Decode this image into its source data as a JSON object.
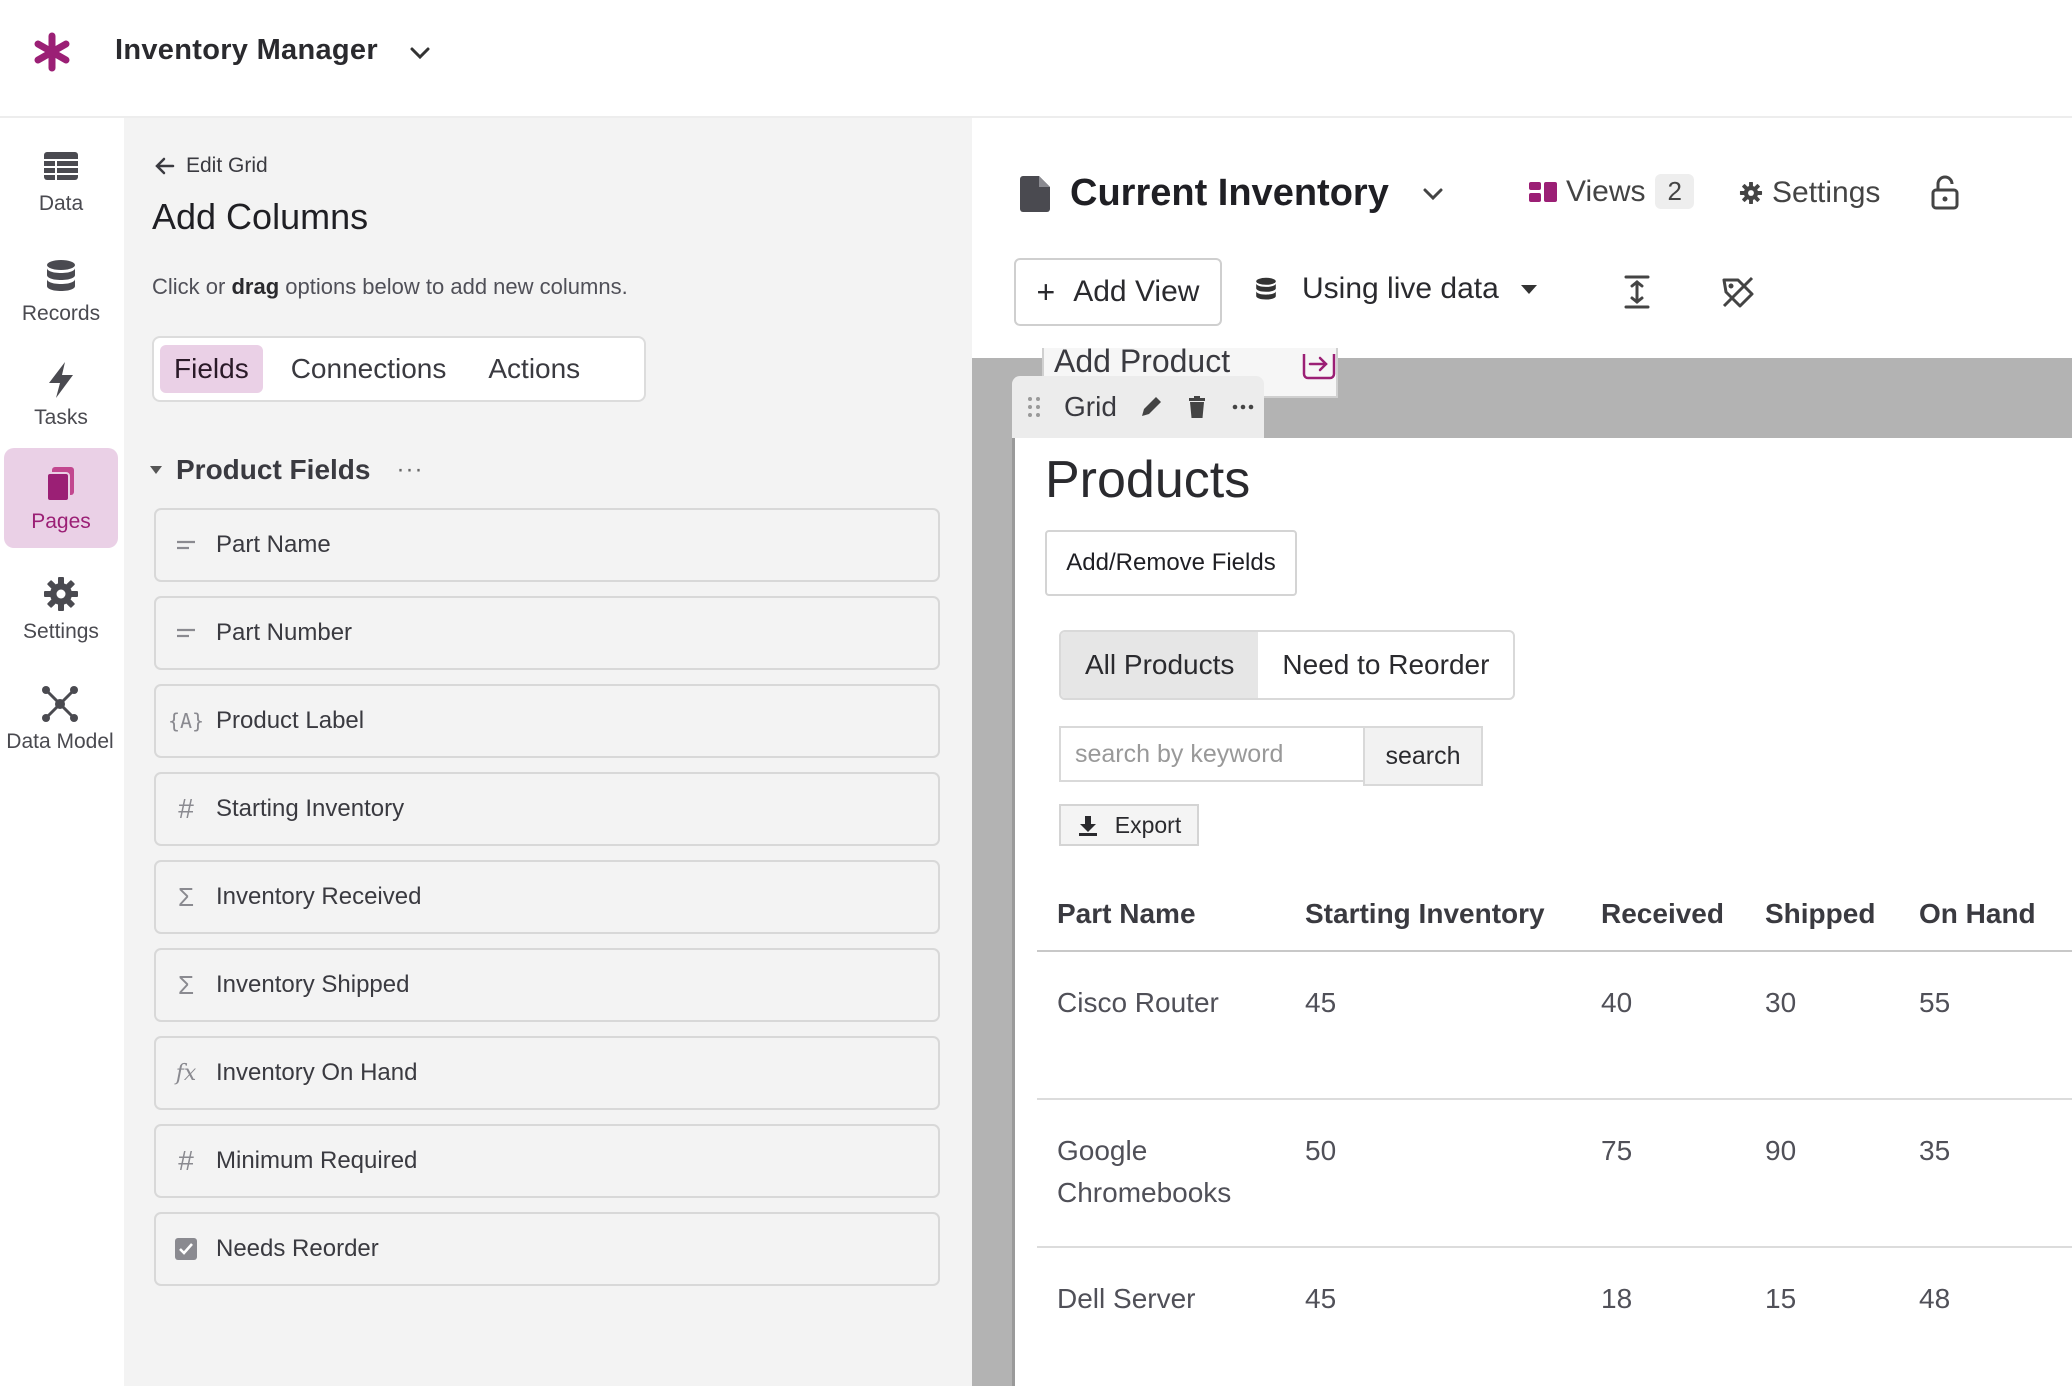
{
  "app": {
    "title": "Inventory Manager",
    "brand_color": "#9b1f75"
  },
  "leftnav": {
    "items": [
      {
        "label": "Data",
        "icon": "table-icon",
        "active": false
      },
      {
        "label": "Records",
        "icon": "database-icon",
        "active": false
      },
      {
        "label": "Tasks",
        "icon": "lightning-icon",
        "active": false
      },
      {
        "label": "Pages",
        "icon": "pages-icon",
        "active": true
      },
      {
        "label": "Settings",
        "icon": "gear-icon",
        "active": false
      },
      {
        "label": "Data Model",
        "icon": "network-icon",
        "active": false
      }
    ]
  },
  "edit_panel": {
    "back_label": "Edit Grid",
    "title": "Add Columns",
    "hint_prefix": "Click or ",
    "hint_bold": "drag",
    "hint_suffix": " options below to add new columns.",
    "tabs": [
      {
        "label": "Fields",
        "active": true
      },
      {
        "label": "Connections",
        "active": false
      },
      {
        "label": "Actions",
        "active": false
      }
    ],
    "section_title": "Product Fields",
    "section_more": "···",
    "fields": [
      {
        "label": "Part Name",
        "icon": "short-text-icon"
      },
      {
        "label": "Part Number",
        "icon": "short-text-icon"
      },
      {
        "label": "Product Label",
        "icon": "text-formula-icon"
      },
      {
        "label": "Starting Inventory",
        "icon": "number-icon"
      },
      {
        "label": "Inventory Received",
        "icon": "sum-icon"
      },
      {
        "label": "Inventory Shipped",
        "icon": "sum-icon"
      },
      {
        "label": "Inventory On Hand",
        "icon": "equation-icon"
      },
      {
        "label": "Minimum Required",
        "icon": "number-icon"
      },
      {
        "label": "Needs Reorder",
        "icon": "checkbox-icon"
      }
    ]
  },
  "builder": {
    "page_name": "Current Inventory",
    "views_label": "Views",
    "views_count": "2",
    "settings_label": "Settings",
    "add_view_label": "Add View",
    "data_mode_label": "Using live data",
    "prev_block_label": "Add Product",
    "grid_toolbar_label": "Grid",
    "grid": {
      "title": "Products",
      "add_remove_label": "Add/Remove Fields",
      "view_tabs": [
        {
          "label": "All Products",
          "active": true
        },
        {
          "label": "Need to Reorder",
          "active": false
        }
      ],
      "search_placeholder": "search by keyword",
      "search_button": "search",
      "export_label": "Export",
      "columns": [
        "Part Name",
        "Starting Inventory",
        "Received",
        "Shipped",
        "On Hand"
      ],
      "rows": [
        [
          "Cisco Router",
          "45",
          "40",
          "30",
          "55"
        ],
        [
          "Google Chromebooks",
          "50",
          "75",
          "90",
          "35"
        ],
        [
          "Dell Server",
          "45",
          "18",
          "15",
          "48"
        ]
      ]
    }
  }
}
